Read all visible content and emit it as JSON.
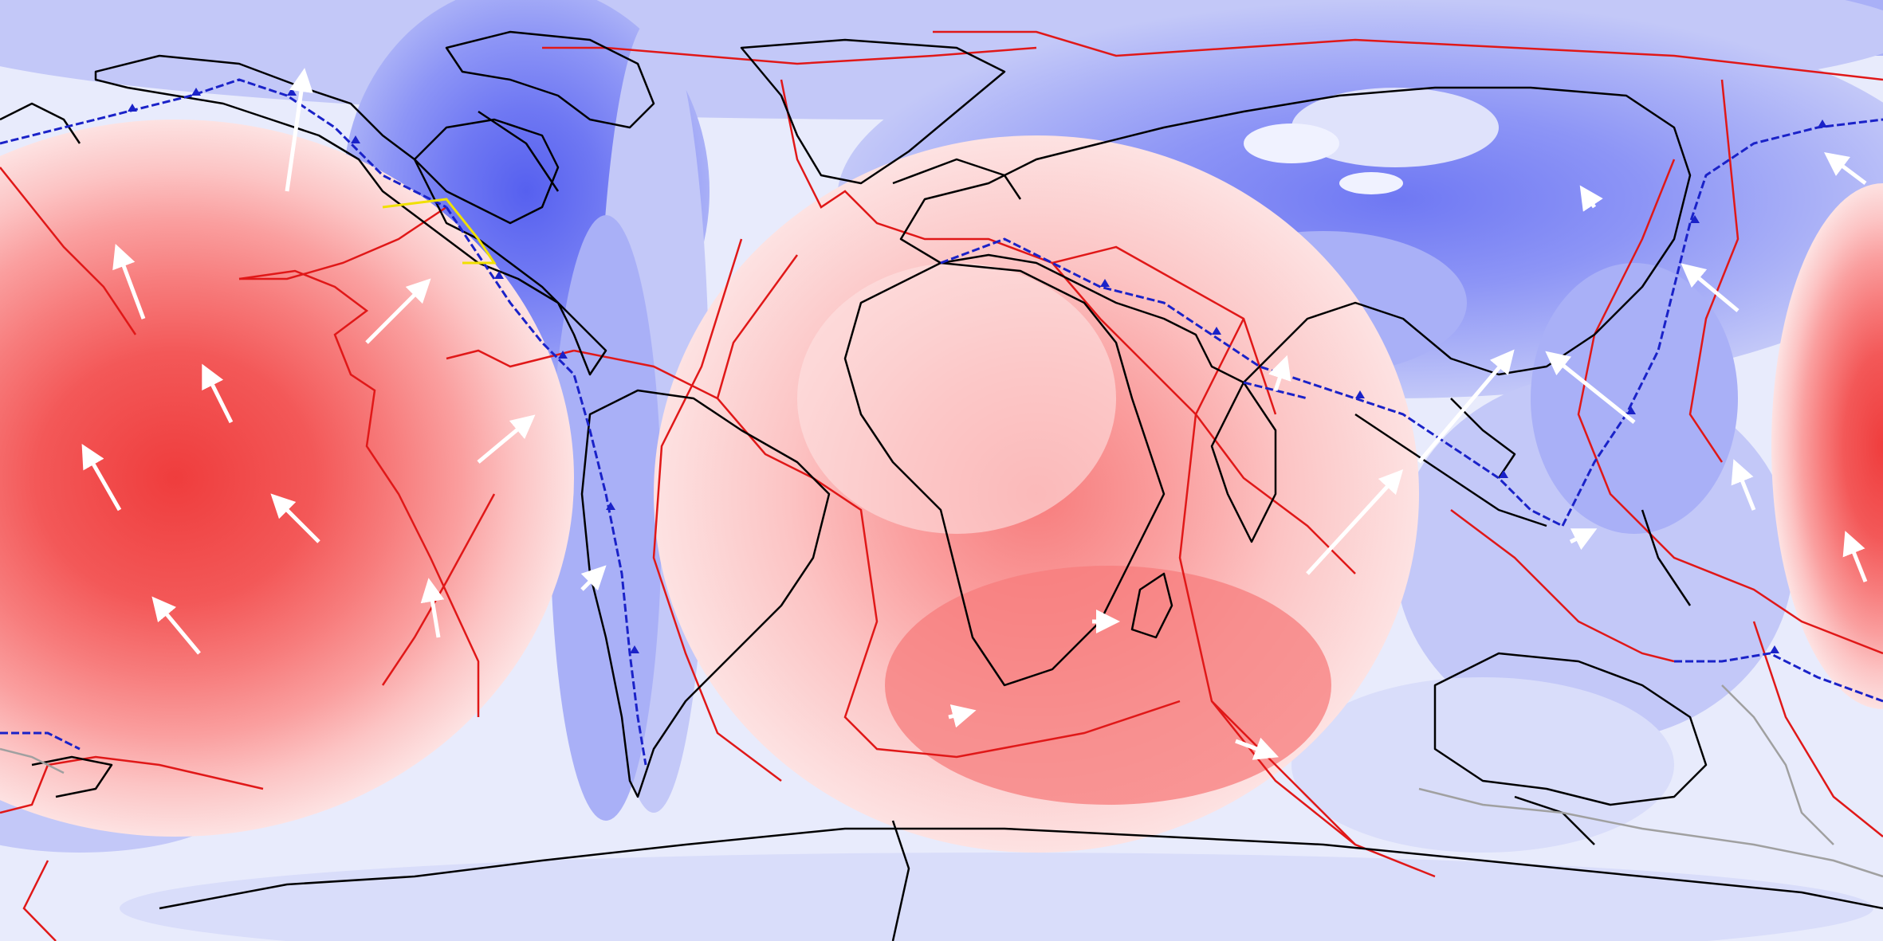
{
  "figure": {
    "kind": "global geodynamic map (equirectangular projection)",
    "colors": {
      "background": "#e8ebfc",
      "blue_levels": [
        "#d9ddfa",
        "#c3c8f8",
        "#a9b0f7",
        "#8d95f6",
        "#6f78f3",
        "#5660ef"
      ],
      "red_levels": [
        "#fde2e2",
        "#fcc4c4",
        "#fa9f9f",
        "#f77c7c",
        "#f35858",
        "#ef3d3d"
      ],
      "plate_boundary": "#e01818",
      "subduction_zone": "#1a22c8",
      "coastline": "#000000",
      "velocity_arrow": "#ffffff",
      "yellow_thrust": "#f0e000",
      "gray_boundary": "#a0a0a0"
    },
    "icons": [
      "velocity-arrow-icon",
      "subduction-triangle-icon"
    ]
  }
}
